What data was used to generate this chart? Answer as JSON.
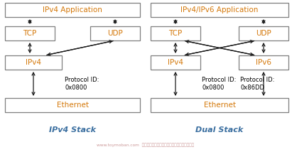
{
  "bg_color": "#ffffff",
  "box_edge_color": "#7f7f7f",
  "text_color_orange": "#d4780a",
  "text_color_black": "#000000",
  "text_color_blue": "#3b6fa0",
  "arrow_color": "#1a1a1a",
  "left_stack": {
    "title": "IPv4 Stack",
    "app_label": "IPv4 Application",
    "tcp_label": "TCP",
    "udp_label": "UDP",
    "ip_label": "IPv4",
    "eth_label": "Ethernet",
    "protocol_label": "Protocol ID:\n0x0800"
  },
  "right_stack": {
    "title": "Dual Stack",
    "app_label": "IPv4/IPv6 Application",
    "tcp_label": "TCP",
    "udp_label": "UDP",
    "ip4_label": "IPv4",
    "ip6_label": "IPv6",
    "eth_label": "Ethernet",
    "protocol_left_label": "Protocol ID:\n0x0800",
    "protocol_right_label": "Protocol ID:\n0x86DD"
  },
  "watermark": "www.toymoban.com  网络图片仅供展示，非存储，如有授权请联系删"
}
